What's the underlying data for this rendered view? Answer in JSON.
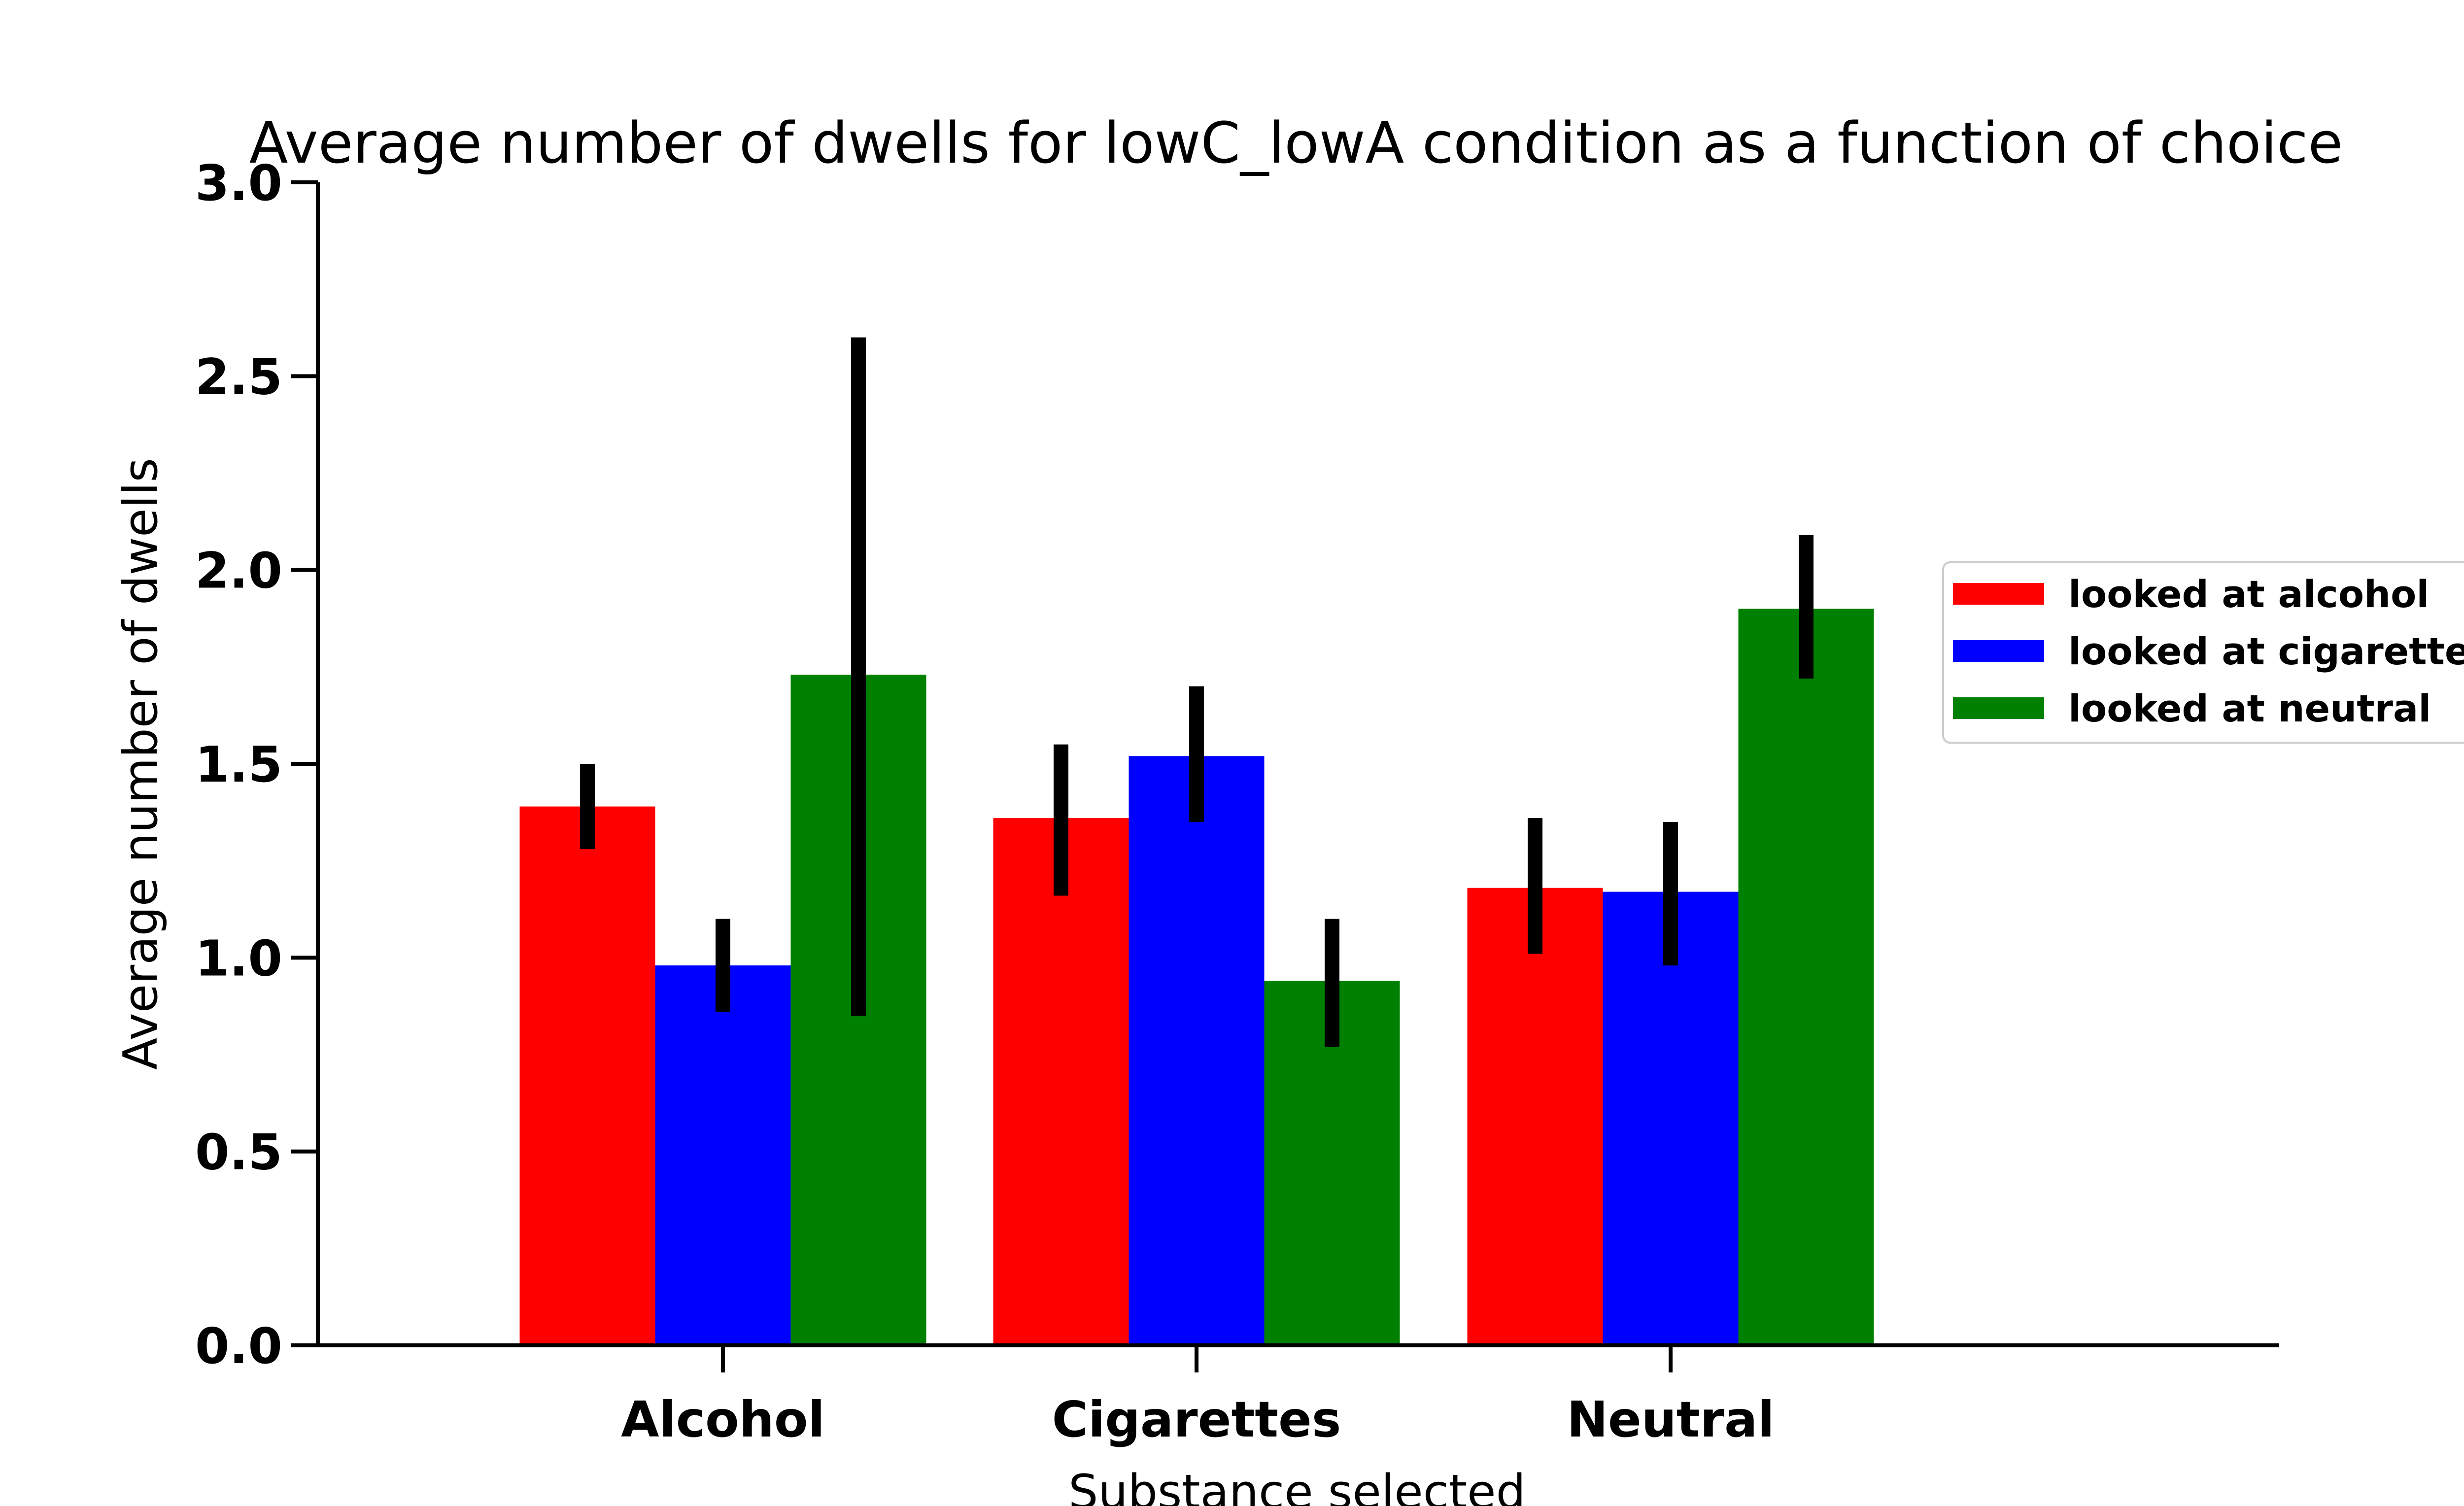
{
  "chart_data": {
    "type": "bar",
    "title": "Average number of dwells for lowC_lowA condition as a function of choice",
    "xlabel": "Substance selected",
    "ylabel": "Average number of dwells",
    "ylim": [
      0,
      3.0
    ],
    "yticks": [
      "0.0",
      "0.5",
      "1.0",
      "1.5",
      "2.0",
      "2.5",
      "3.0"
    ],
    "categories": [
      "Alcohol",
      "Cigarettes",
      "Neutral"
    ],
    "series": [
      {
        "name": "looked at alcohol",
        "color": "#ff0000",
        "values": [
          1.39,
          1.36,
          1.18
        ],
        "errors": [
          [
            1.28,
            1.5
          ],
          [
            1.16,
            1.55
          ],
          [
            1.01,
            1.36
          ]
        ]
      },
      {
        "name": "looked at cigarettes",
        "color": "#0000ff",
        "values": [
          0.98,
          1.52,
          1.17
        ],
        "errors": [
          [
            0.86,
            1.1
          ],
          [
            1.35,
            1.7
          ],
          [
            0.98,
            1.35
          ]
        ]
      },
      {
        "name": "looked at neutral",
        "color": "#008000",
        "values": [
          1.73,
          0.94,
          1.9
        ],
        "errors": [
          [
            0.85,
            2.6
          ],
          [
            0.77,
            1.1
          ],
          [
            1.72,
            2.09
          ]
        ]
      }
    ],
    "legend_position": "right",
    "grid": false
  }
}
